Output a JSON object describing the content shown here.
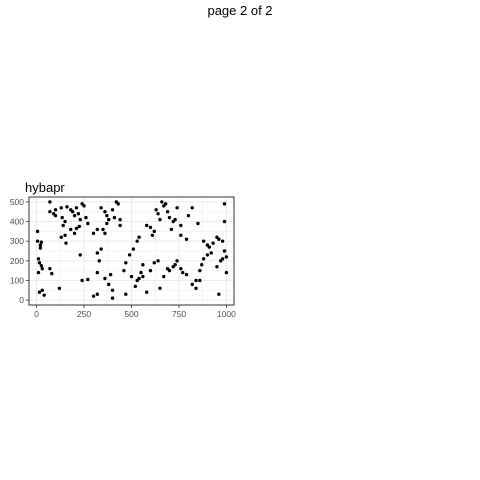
{
  "page": {
    "label": "page 2 of 2"
  },
  "chart_data": {
    "type": "scatter",
    "title": "hybapr",
    "xlabel": "",
    "ylabel": "",
    "xlim": [
      -40,
      1040
    ],
    "ylim": [
      -25,
      525
    ],
    "x_ticks": [
      0,
      250,
      500,
      750,
      1000
    ],
    "y_ticks": [
      0,
      100,
      200,
      300,
      400,
      500
    ],
    "grid": true,
    "legend": "none",
    "colors": {
      "point": "#000000",
      "grid": "#ebebeb",
      "border": "#333333",
      "axis_text": "#4d4d4d"
    },
    "points": [
      [
        5,
        350
      ],
      [
        5,
        300
      ],
      [
        10,
        210
      ],
      [
        15,
        190
      ],
      [
        20,
        280
      ],
      [
        25,
        295
      ],
      [
        20,
        265
      ],
      [
        25,
        175
      ],
      [
        30,
        160
      ],
      [
        10,
        140
      ],
      [
        30,
        50
      ],
      [
        40,
        25
      ],
      [
        15,
        40
      ],
      [
        70,
        500
      ],
      [
        70,
        450
      ],
      [
        90,
        440
      ],
      [
        100,
        460
      ],
      [
        100,
        430
      ],
      [
        130,
        470
      ],
      [
        135,
        420
      ],
      [
        150,
        400
      ],
      [
        140,
        380
      ],
      [
        160,
        475
      ],
      [
        180,
        460
      ],
      [
        190,
        450
      ],
      [
        210,
        470
      ],
      [
        200,
        430
      ],
      [
        220,
        440
      ],
      [
        240,
        490
      ],
      [
        230,
        410
      ],
      [
        250,
        480
      ],
      [
        260,
        420
      ],
      [
        270,
        390
      ],
      [
        180,
        360
      ],
      [
        200,
        340
      ],
      [
        210,
        365
      ],
      [
        225,
        375
      ],
      [
        150,
        330
      ],
      [
        130,
        320
      ],
      [
        155,
        290
      ],
      [
        70,
        160
      ],
      [
        80,
        135
      ],
      [
        120,
        60
      ],
      [
        230,
        230
      ],
      [
        240,
        100
      ],
      [
        270,
        105
      ],
      [
        300,
        20
      ],
      [
        320,
        30
      ],
      [
        320,
        140
      ],
      [
        320,
        240
      ],
      [
        340,
        260
      ],
      [
        330,
        200
      ],
      [
        340,
        470
      ],
      [
        360,
        450
      ],
      [
        370,
        430
      ],
      [
        380,
        410
      ],
      [
        370,
        390
      ],
      [
        350,
        360
      ],
      [
        360,
        340
      ],
      [
        300,
        340
      ],
      [
        320,
        360
      ],
      [
        400,
        460
      ],
      [
        410,
        420
      ],
      [
        420,
        500
      ],
      [
        430,
        490
      ],
      [
        440,
        410
      ],
      [
        440,
        380
      ],
      [
        460,
        150
      ],
      [
        470,
        190
      ],
      [
        500,
        120
      ],
      [
        490,
        230
      ],
      [
        470,
        30
      ],
      [
        400,
        50
      ],
      [
        380,
        80
      ],
      [
        360,
        110
      ],
      [
        390,
        130
      ],
      [
        400,
        10
      ],
      [
        520,
        70
      ],
      [
        530,
        100
      ],
      [
        540,
        110
      ],
      [
        550,
        140
      ],
      [
        560,
        120
      ],
      [
        580,
        40
      ],
      [
        580,
        380
      ],
      [
        600,
        370
      ],
      [
        610,
        330
      ],
      [
        620,
        350
      ],
      [
        630,
        460
      ],
      [
        640,
        440
      ],
      [
        650,
        410
      ],
      [
        660,
        500
      ],
      [
        670,
        480
      ],
      [
        680,
        490
      ],
      [
        690,
        450
      ],
      [
        700,
        420
      ],
      [
        710,
        360
      ],
      [
        720,
        400
      ],
      [
        730,
        410
      ],
      [
        740,
        470
      ],
      [
        760,
        380
      ],
      [
        760,
        330
      ],
      [
        790,
        310
      ],
      [
        800,
        430
      ],
      [
        820,
        470
      ],
      [
        650,
        60
      ],
      [
        670,
        120
      ],
      [
        690,
        160
      ],
      [
        700,
        150
      ],
      [
        720,
        170
      ],
      [
        730,
        180
      ],
      [
        740,
        200
      ],
      [
        760,
        160
      ],
      [
        770,
        140
      ],
      [
        790,
        130
      ],
      [
        820,
        80
      ],
      [
        840,
        100
      ],
      [
        860,
        150
      ],
      [
        870,
        180
      ],
      [
        880,
        210
      ],
      [
        900,
        230
      ],
      [
        920,
        240
      ],
      [
        930,
        290
      ],
      [
        950,
        320
      ],
      [
        960,
        310
      ],
      [
        980,
        300
      ],
      [
        990,
        250
      ],
      [
        1000,
        220
      ],
      [
        970,
        200
      ],
      [
        980,
        210
      ],
      [
        990,
        490
      ],
      [
        990,
        400
      ],
      [
        960,
        30
      ],
      [
        1000,
        140
      ],
      [
        950,
        170
      ],
      [
        900,
        280
      ],
      [
        910,
        270
      ],
      [
        860,
        100
      ],
      [
        840,
        60
      ],
      [
        880,
        300
      ],
      [
        850,
        390
      ],
      [
        600,
        150
      ],
      [
        620,
        190
      ],
      [
        640,
        200
      ],
      [
        560,
        180
      ],
      [
        540,
        320
      ],
      [
        530,
        300
      ],
      [
        510,
        260
      ]
    ]
  }
}
